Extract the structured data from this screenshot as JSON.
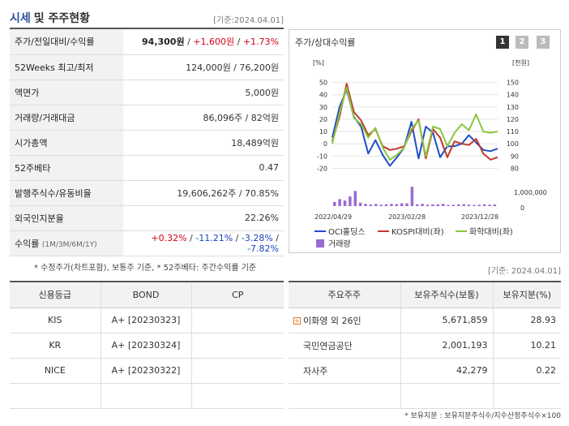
{
  "header": {
    "title_blue": "시세",
    "title_rest": "및 주주현황",
    "basis": "[기준:2024.04.01]"
  },
  "price_rows": [
    {
      "label": "주가/전일대비/수익률",
      "value": "94,300원",
      "v2": "+1,600원",
      "v3": "+1.73%"
    },
    {
      "label": "52Weeks 최고/최저",
      "value": "124,000원 / 76,200원"
    },
    {
      "label": "액면가",
      "value": "5,000원"
    },
    {
      "label": "거래량/거래대금",
      "value": "86,096주 / 82억원"
    },
    {
      "label": "시가총액",
      "value": "18,489억원"
    },
    {
      "label": "52주베타",
      "value": "0.47"
    },
    {
      "label": "발행주식수/유동비율",
      "value": "19,606,262주 / 70.85%"
    },
    {
      "label": "외국인지분율",
      "value": "22.26%"
    }
  ],
  "returns_row": {
    "label": "수익률",
    "periods": "(1M/3M/6M/1Y)",
    "r1": "+0.32%",
    "r2": "-11.21%",
    "r3": "-3.28%",
    "r4": "-7.82%"
  },
  "note1": "* 수정주가(차트포함), 보통주 기준, * 52주베타: 주간수익률 기준",
  "chart_panel": {
    "title": "주가/상대수익률",
    "pages": [
      "1",
      "2",
      "3"
    ]
  },
  "chart_data": {
    "type": "line",
    "left_unit": "[%]",
    "right_unit": "[천원]",
    "left_ticks": [
      "50",
      "40",
      "30",
      "20",
      "10",
      "0",
      "-10",
      "-20"
    ],
    "right_ticks": [
      "150",
      "140",
      "130",
      "120",
      "110",
      "100",
      "90",
      "80"
    ],
    "volume_label": "1,000,000",
    "volume_zero": "0",
    "x_labels": [
      "2022/04/29",
      "2023/02/28",
      "2023/12/28"
    ],
    "ylim": [
      -25,
      55
    ],
    "series": [
      {
        "name": "OCI홀딩스",
        "color": "#1f4fc6",
        "values": [
          5,
          30,
          44,
          22,
          14,
          -8,
          3,
          -9,
          -18,
          -11,
          -3,
          18,
          -12,
          14,
          9,
          -11,
          -2,
          -2,
          0,
          7,
          1,
          -5,
          -6,
          -4
        ]
      },
      {
        "name": "KOSPI대비(좌)",
        "color": "#c0392b",
        "values": [
          2,
          22,
          49,
          26,
          19,
          7,
          12,
          -2,
          -5,
          -4,
          -2,
          10,
          20,
          -12,
          12,
          5,
          -11,
          2,
          0,
          -1,
          4,
          -8,
          -13,
          -11
        ]
      },
      {
        "name": "화학대비(좌)",
        "color": "#8cc63f",
        "values": [
          0,
          25,
          46,
          21,
          16,
          5,
          13,
          -3,
          -13,
          -9,
          -3,
          12,
          19,
          -10,
          14,
          12,
          -2,
          9,
          16,
          11,
          24,
          10,
          9,
          10
        ]
      }
    ],
    "volume": [
      0.15,
      0.25,
      0.2,
      0.35,
      0.55,
      0.12,
      0.08,
      0.06,
      0.08,
      0.05,
      0.06,
      0.08,
      0.07,
      0.1,
      0.1,
      0.7,
      0.06,
      0.08,
      0.05,
      0.06,
      0.06,
      0.08,
      0.04,
      0.05,
      0.06,
      0.07,
      0.05,
      0.04,
      0.05,
      0.06,
      0.05,
      0.06
    ],
    "legend": [
      "OCI홀딩스",
      "KOSPI대비(좌)",
      "화학대비(좌)",
      "거래량"
    ]
  },
  "basis2": "[기준: 2024.04.01]",
  "credit": {
    "headers": [
      "신용등급",
      "BOND",
      "CP"
    ],
    "rows": [
      {
        "agency": "KIS",
        "bond": "A+  [20230323]",
        "cp": ""
      },
      {
        "agency": "KR",
        "bond": "A+  [20230324]",
        "cp": ""
      },
      {
        "agency": "NICE",
        "bond": "A+  [20230322]",
        "cp": ""
      },
      {
        "agency": "",
        "bond": "",
        "cp": ""
      }
    ]
  },
  "holders": {
    "headers": [
      "주요주주",
      "보유주식수(보통)",
      "보유지분(%)"
    ],
    "rows": [
      {
        "name": "이화영 외 26인",
        "shares": "5,671,859",
        "pct": "28.93",
        "expand": "+"
      },
      {
        "name": "국민연금공단",
        "shares": "2,001,193",
        "pct": "10.21"
      },
      {
        "name": "자사주",
        "shares": "42,279",
        "pct": "0.22"
      },
      {
        "name": "",
        "shares": "",
        "pct": ""
      }
    ]
  },
  "note3": "* 보유지분 : 보유지분주식수/지수산정주식수×100"
}
